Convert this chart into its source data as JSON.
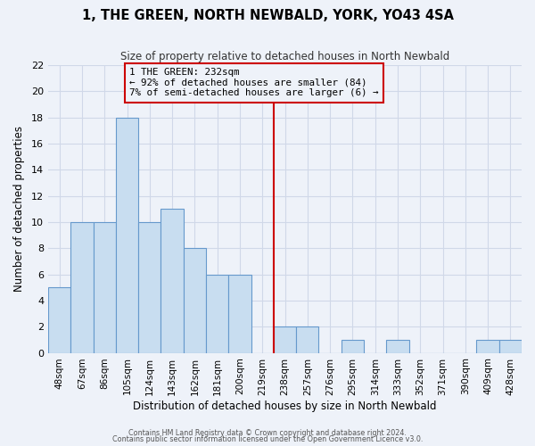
{
  "title": "1, THE GREEN, NORTH NEWBALD, YORK, YO43 4SA",
  "subtitle": "Size of property relative to detached houses in North Newbald",
  "xlabel": "Distribution of detached houses by size in North Newbald",
  "ylabel": "Number of detached properties",
  "bar_labels": [
    "48sqm",
    "67sqm",
    "86sqm",
    "105sqm",
    "124sqm",
    "143sqm",
    "162sqm",
    "181sqm",
    "200sqm",
    "219sqm",
    "238sqm",
    "257sqm",
    "276sqm",
    "295sqm",
    "314sqm",
    "333sqm",
    "352sqm",
    "371sqm",
    "390sqm",
    "409sqm",
    "428sqm"
  ],
  "bar_heights": [
    5,
    10,
    10,
    18,
    10,
    11,
    8,
    6,
    6,
    0,
    2,
    2,
    0,
    1,
    0,
    1,
    0,
    0,
    0,
    1,
    1
  ],
  "bar_color": "#c8ddf0",
  "bar_edge_color": "#6699cc",
  "vline_x": 10.0,
  "vline_color": "#cc0000",
  "annotation_title": "1 THE GREEN: 232sqm",
  "annotation_line1": "← 92% of detached houses are smaller (84)",
  "annotation_line2": "7% of semi-detached houses are larger (6) →",
  "annotation_box_edgecolor": "#cc0000",
  "ylim": [
    0,
    22
  ],
  "yticks": [
    0,
    2,
    4,
    6,
    8,
    10,
    12,
    14,
    16,
    18,
    20,
    22
  ],
  "footer_line1": "Contains HM Land Registry data © Crown copyright and database right 2024.",
  "footer_line2": "Contains public sector information licensed under the Open Government Licence v3.0.",
  "background_color": "#eef2f9",
  "plot_bg_color": "#eef2f9",
  "grid_color": "#d0d8e8"
}
